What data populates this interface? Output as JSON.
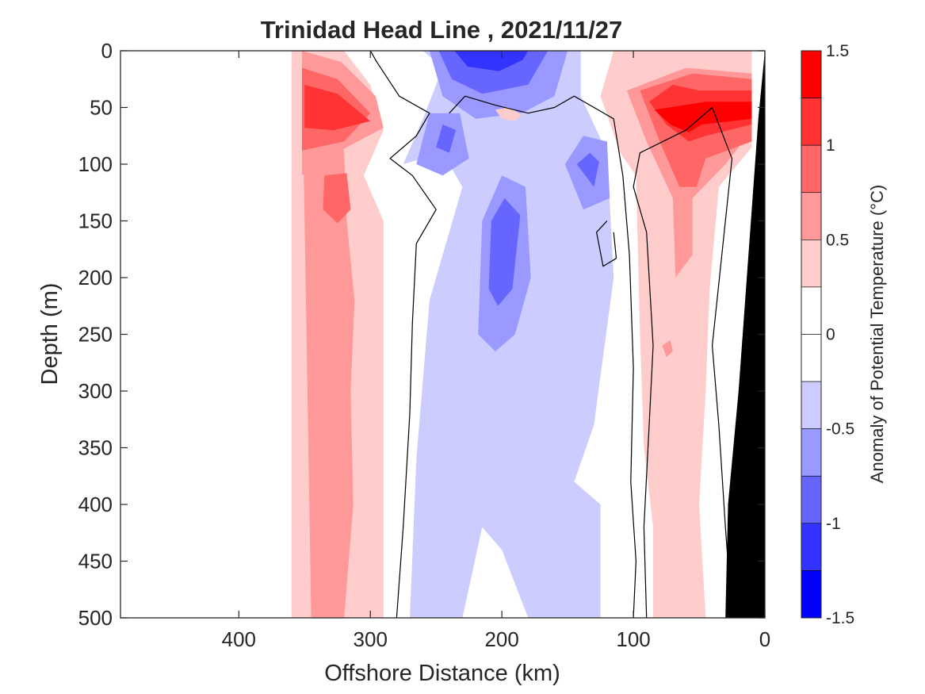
{
  "chart_data": {
    "type": "contour",
    "title": "Trinidad Head Line , 2021/11/27",
    "xlabel": "Offshore Distance (km)",
    "ylabel": "Depth (m)",
    "xlim": [
      490,
      0
    ],
    "ylim": [
      0,
      500
    ],
    "x_direction": "reversed",
    "y_direction": "reversed",
    "x_ticks": [
      400,
      300,
      200,
      100,
      0
    ],
    "x_tick_labels": [
      "400",
      "300",
      "200",
      "100",
      "0"
    ],
    "y_ticks": [
      0,
      50,
      100,
      150,
      200,
      250,
      300,
      350,
      400,
      450,
      500
    ],
    "y_tick_labels": [
      "0",
      "50",
      "100",
      "150",
      "200",
      "250",
      "300",
      "350",
      "400",
      "450",
      "500"
    ],
    "grid": false,
    "colorbar": {
      "label": "Anomaly of Potential Temperature (°C)",
      "range": [
        -1.5,
        1.5
      ],
      "ticks": [
        1.5,
        1,
        0.5,
        0,
        -0.5,
        -1,
        -1.5
      ],
      "tick_labels": [
        "1.5",
        "1",
        "0.5",
        "0",
        "-0.5",
        "-1",
        "-1.5"
      ],
      "levels": [
        1.5,
        1.25,
        1.0,
        0.75,
        0.5,
        0.25,
        0.0,
        -0.25,
        -0.5,
        -0.75,
        -1.0,
        -1.25,
        -1.5
      ],
      "colors": [
        "#ff0000",
        "#ff3333",
        "#ff6666",
        "#ff9999",
        "#ffcccc",
        "#ffffff",
        "#ffffff",
        "#ccccff",
        "#9999ff",
        "#6666ff",
        "#3333ff",
        "#0000ff"
      ]
    },
    "regions": [
      {
        "name": "warm-band-offshore",
        "level": 0.25,
        "color": "#ffcccc",
        "pts": [
          [
            360,
            500
          ],
          [
            360,
            0
          ],
          [
            320,
            0
          ],
          [
            300,
            30
          ],
          [
            290,
            70
          ],
          [
            305,
            110
          ],
          [
            290,
            150
          ],
          [
            290,
            500
          ]
        ]
      },
      {
        "name": "warm-band-offshore-core",
        "level": 0.5,
        "color": "#ff9999",
        "pts": [
          [
            345,
            500
          ],
          [
            350,
            150
          ],
          [
            352,
            20
          ],
          [
            330,
            40
          ],
          [
            320,
            90
          ],
          [
            318,
            150
          ],
          [
            312,
            220
          ],
          [
            315,
            300
          ],
          [
            313,
            400
          ],
          [
            320,
            500
          ]
        ]
      },
      {
        "name": "warm-surface-tongue",
        "level": 0.5,
        "color": "#ff9999",
        "pts": [
          [
            352,
            0
          ],
          [
            322,
            10
          ],
          [
            296,
            40
          ],
          [
            290,
            68
          ],
          [
            318,
            85
          ],
          [
            352,
            110
          ]
        ]
      },
      {
        "name": "warm-surface-tongue-inner",
        "level": 0.75,
        "color": "#ff6666",
        "pts": [
          [
            352,
            15
          ],
          [
            325,
            25
          ],
          [
            300,
            55
          ],
          [
            320,
            80
          ],
          [
            352,
            88
          ]
        ]
      },
      {
        "name": "warm-surface-tongue-core",
        "level": 1.0,
        "color": "#ff3333",
        "pts": [
          [
            350,
            30
          ],
          [
            325,
            38
          ],
          [
            300,
            62
          ],
          [
            328,
            70
          ],
          [
            350,
            68
          ]
        ]
      },
      {
        "name": "warm-patch-130m",
        "level": 0.75,
        "color": "#ff6666",
        "pts": [
          [
            335,
            110
          ],
          [
            318,
            108
          ],
          [
            315,
            140
          ],
          [
            325,
            152
          ],
          [
            336,
            140
          ]
        ]
      },
      {
        "name": "cool-band-center",
        "level": -0.25,
        "color": "#ccccff",
        "pts": [
          [
            270,
            500
          ],
          [
            265,
            360
          ],
          [
            255,
            220
          ],
          [
            230,
            120
          ],
          [
            245,
            90
          ],
          [
            275,
            100
          ],
          [
            260,
            60
          ],
          [
            245,
            15
          ],
          [
            260,
            0
          ],
          [
            140,
            0
          ],
          [
            140,
            40
          ],
          [
            120,
            90
          ],
          [
            115,
            200
          ],
          [
            130,
            330
          ],
          [
            145,
            380
          ],
          [
            125,
            400
          ],
          [
            125,
            500
          ],
          [
            180,
            500
          ],
          [
            200,
            440
          ],
          [
            215,
            420
          ],
          [
            230,
            500
          ]
        ]
      },
      {
        "name": "cool-surface-cell",
        "level": -0.5,
        "color": "#9999ff",
        "pts": [
          [
            255,
            0
          ],
          [
            245,
            40
          ],
          [
            220,
            60
          ],
          [
            185,
            55
          ],
          [
            160,
            40
          ],
          [
            150,
            0
          ]
        ]
      },
      {
        "name": "cool-surface-core",
        "level": -0.75,
        "color": "#6666ff",
        "pts": [
          [
            248,
            0
          ],
          [
            238,
            25
          ],
          [
            215,
            38
          ],
          [
            180,
            30
          ],
          [
            165,
            0
          ]
        ]
      },
      {
        "name": "cool-surface-core-inner",
        "level": -1.0,
        "color": "#3333ff",
        "pts": [
          [
            236,
            0
          ],
          [
            226,
            14
          ],
          [
            202,
            18
          ],
          [
            184,
            8
          ],
          [
            180,
            0
          ]
        ]
      },
      {
        "name": "cool-cell-80m",
        "level": -0.5,
        "color": "#9999ff",
        "pts": [
          [
            265,
            100
          ],
          [
            255,
            55
          ],
          [
            232,
            55
          ],
          [
            225,
            95
          ],
          [
            245,
            110
          ]
        ]
      },
      {
        "name": "cool-cell-80m-core",
        "level": -0.75,
        "color": "#6666ff",
        "pts": [
          [
            250,
            85
          ],
          [
            245,
            65
          ],
          [
            235,
            70
          ],
          [
            240,
            90
          ]
        ]
      },
      {
        "name": "cool-column-200m",
        "level": -0.5,
        "color": "#9999ff",
        "pts": [
          [
            218,
            250
          ],
          [
            215,
            150
          ],
          [
            200,
            110
          ],
          [
            182,
            120
          ],
          [
            178,
            200
          ],
          [
            190,
            250
          ],
          [
            205,
            265
          ]
        ]
      },
      {
        "name": "cool-column-200m-core",
        "level": -0.75,
        "color": "#6666ff",
        "pts": [
          [
            210,
            210
          ],
          [
            208,
            150
          ],
          [
            198,
            130
          ],
          [
            186,
            145
          ],
          [
            192,
            210
          ],
          [
            203,
            225
          ]
        ]
      },
      {
        "name": "cool-cell-110m",
        "level": -0.5,
        "color": "#9999ff",
        "pts": [
          [
            152,
            100
          ],
          [
            138,
            75
          ],
          [
            120,
            80
          ],
          [
            118,
            130
          ],
          [
            138,
            140
          ]
        ]
      },
      {
        "name": "cool-cell-110m-core",
        "level": -0.75,
        "color": "#6666ff",
        "pts": [
          [
            143,
            100
          ],
          [
            133,
            90
          ],
          [
            126,
            98
          ],
          [
            130,
            120
          ]
        ]
      },
      {
        "name": "warm-band-inshore",
        "level": 0.25,
        "color": "#ffcccc",
        "pts": [
          [
            115,
            0
          ],
          [
            125,
            40
          ],
          [
            110,
            90
          ],
          [
            98,
            110
          ],
          [
            95,
            250
          ],
          [
            92,
            350
          ],
          [
            85,
            420
          ],
          [
            85,
            500
          ],
          [
            45,
            500
          ],
          [
            50,
            400
          ],
          [
            45,
            300
          ],
          [
            42,
            210
          ],
          [
            35,
            120
          ],
          [
            10,
            85
          ],
          [
            10,
            0
          ]
        ]
      },
      {
        "name": "warm-band-inshore-core",
        "level": 0.5,
        "color": "#ff9999",
        "pts": [
          [
            105,
            35
          ],
          [
            90,
            80
          ],
          [
            70,
            130
          ],
          [
            68,
            200
          ],
          [
            55,
            180
          ],
          [
            55,
            130
          ],
          [
            30,
            100
          ],
          [
            10,
            70
          ],
          [
            10,
            20
          ],
          [
            60,
            15
          ]
        ]
      },
      {
        "name": "warm-inshore-surface",
        "level": 0.75,
        "color": "#ff6666",
        "pts": [
          [
            95,
            35
          ],
          [
            80,
            80
          ],
          [
            65,
            120
          ],
          [
            52,
            120
          ],
          [
            45,
            95
          ],
          [
            10,
            80
          ],
          [
            10,
            25
          ],
          [
            55,
            20
          ]
        ]
      },
      {
        "name": "warm-inshore-surface-core",
        "level": 1.0,
        "color": "#ff3333",
        "pts": [
          [
            88,
            45
          ],
          [
            75,
            65
          ],
          [
            58,
            80
          ],
          [
            45,
            75
          ],
          [
            10,
            65
          ],
          [
            10,
            35
          ],
          [
            50,
            35
          ],
          [
            70,
            30
          ]
        ]
      },
      {
        "name": "warm-inshore-surface-inner",
        "level": 1.25,
        "color": "#ff0000",
        "pts": [
          [
            84,
            52
          ],
          [
            72,
            65
          ],
          [
            58,
            72
          ],
          [
            48,
            65
          ],
          [
            10,
            60
          ],
          [
            10,
            45
          ],
          [
            45,
            45
          ]
        ]
      },
      {
        "name": "warm-patch-60m-center",
        "level": 0.5,
        "color": "#ffcccc",
        "pts": [
          [
            205,
            52
          ],
          [
            200,
            60
          ],
          [
            190,
            62
          ],
          [
            185,
            56
          ],
          [
            195,
            50
          ]
        ]
      },
      {
        "name": "warm-inshore-bottom-patch",
        "level": 0.5,
        "color": "#ff9999",
        "pts": [
          [
            78,
            260
          ],
          [
            75,
            270
          ],
          [
            70,
            265
          ],
          [
            72,
            255
          ]
        ]
      }
    ],
    "zero_contours": [
      [
        [
          280,
          500
        ],
        [
          275,
          420
        ],
        [
          270,
          320
        ],
        [
          268,
          240
        ],
        [
          265,
          170
        ],
        [
          250,
          140
        ],
        [
          268,
          110
        ],
        [
          285,
          95
        ],
        [
          265,
          75
        ],
        [
          255,
          55
        ],
        [
          278,
          40
        ],
        [
          295,
          10
        ],
        [
          300,
          0
        ]
      ],
      [
        [
          240,
          55
        ],
        [
          228,
          40
        ],
        [
          205,
          48
        ],
        [
          180,
          55
        ],
        [
          160,
          50
        ],
        [
          145,
          40
        ],
        [
          115,
          60
        ],
        [
          108,
          110
        ],
        [
          103,
          180
        ],
        [
          100,
          280
        ],
        [
          102,
          380
        ],
        [
          98,
          450
        ],
        [
          100,
          500
        ]
      ],
      [
        [
          120,
          150
        ],
        [
          128,
          160
        ],
        [
          123,
          190
        ],
        [
          113,
          183
        ],
        [
          115,
          160
        ]
      ],
      [
        [
          90,
          500
        ],
        [
          92,
          420
        ],
        [
          88,
          330
        ],
        [
          85,
          260
        ],
        [
          90,
          160
        ],
        [
          100,
          120
        ],
        [
          95,
          90
        ],
        [
          60,
          70
        ],
        [
          40,
          50
        ],
        [
          25,
          95
        ],
        [
          30,
          150
        ],
        [
          40,
          260
        ],
        [
          35,
          330
        ],
        [
          30,
          420
        ],
        [
          25,
          500
        ]
      ]
    ],
    "bathymetry_mask": {
      "color": "#000000",
      "pts": [
        [
          0,
          0
        ],
        [
          0,
          500
        ],
        [
          30,
          500
        ],
        [
          28,
          400
        ],
        [
          20,
          300
        ],
        [
          15,
          220
        ],
        [
          10,
          140
        ],
        [
          5,
          60
        ]
      ]
    }
  }
}
